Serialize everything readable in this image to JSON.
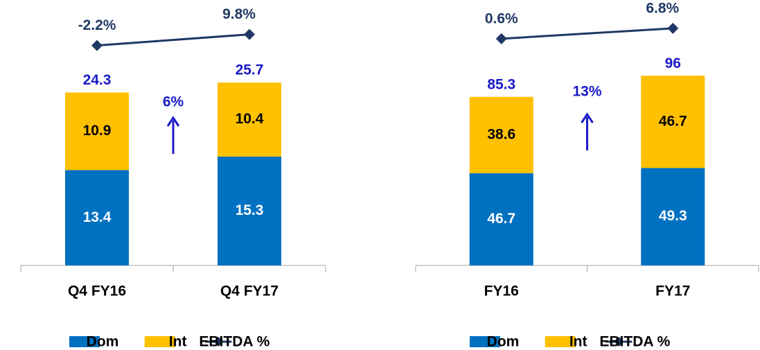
{
  "chart_data": [
    {
      "type": "bar",
      "stacked": true,
      "categories": [
        "Q4 FY16",
        "Q4 FY17"
      ],
      "series": [
        {
          "name": "Dom",
          "color": "#0070c0",
          "values": [
            13.4,
            15.3
          ]
        },
        {
          "name": "Int",
          "color": "#ffc000",
          "values": [
            10.9,
            10.4
          ]
        },
        {
          "name": "EBITDA %",
          "type": "line",
          "axis": "y2",
          "color": "#1f3864",
          "values": [
            -2.2,
            9.8
          ],
          "value_labels": [
            "-2.2%",
            "9.8%"
          ]
        }
      ],
      "totals": [
        24.3,
        25.7
      ],
      "annotation": "6%",
      "ylim": [
        0,
        30
      ],
      "y2lim": [
        -28,
        32
      ]
    },
    {
      "type": "bar",
      "stacked": true,
      "categories": [
        "FY16",
        "FY17"
      ],
      "series": [
        {
          "name": "Dom",
          "color": "#0070c0",
          "values": [
            46.7,
            49.3
          ]
        },
        {
          "name": "Int",
          "color": "#ffc000",
          "values": [
            38.6,
            46.7
          ]
        },
        {
          "name": "EBITDA %",
          "type": "line",
          "axis": "y2",
          "color": "#1f3864",
          "values": [
            0.6,
            6.8
          ],
          "value_labels": [
            "0.6%",
            "6.8%"
          ]
        }
      ],
      "totals": [
        85.3,
        96.0
      ],
      "annotation": "13%",
      "ylim": [
        0,
        108
      ],
      "y2lim": [
        -17.6,
        15.4
      ]
    }
  ]
}
